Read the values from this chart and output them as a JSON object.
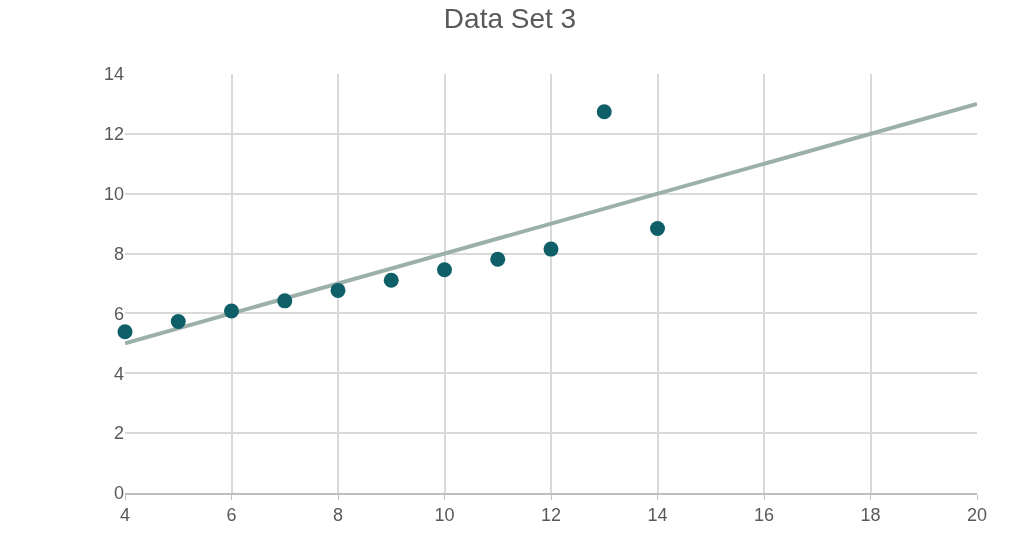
{
  "chart_data": {
    "type": "scatter",
    "title": "Data Set 3",
    "x": [
      4,
      5,
      6,
      7,
      8,
      9,
      10,
      11,
      12,
      13,
      14
    ],
    "series": [
      {
        "type": "scatter",
        "marker": "circle",
        "color": "#0f5f68",
        "values": [
          5.39,
          5.73,
          6.08,
          6.42,
          6.77,
          7.11,
          7.46,
          7.81,
          8.15,
          12.74,
          8.84
        ]
      },
      {
        "type": "line",
        "color": "#9cb0aa",
        "x": [
          4,
          20
        ],
        "values": [
          5,
          13
        ]
      }
    ],
    "xlim": [
      4,
      20
    ],
    "xticks": [
      4,
      6,
      8,
      10,
      12,
      14,
      16,
      18,
      20
    ],
    "ylim": [
      0,
      14
    ],
    "yticks": [
      0,
      2,
      4,
      6,
      8,
      10,
      12,
      14
    ],
    "grid": true,
    "legend": false
  }
}
